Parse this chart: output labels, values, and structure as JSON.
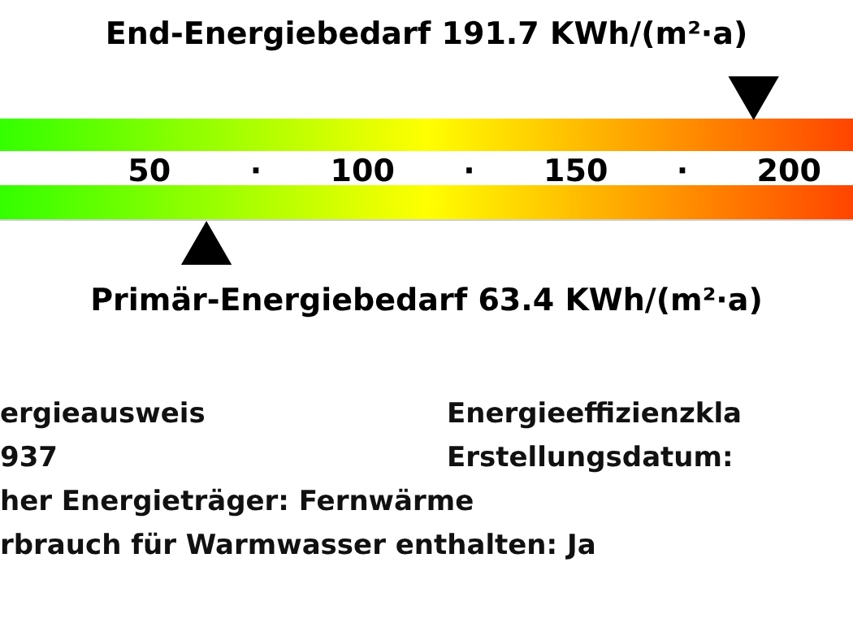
{
  "chart_data": {
    "type": "scatter",
    "orientation": "horizontal",
    "marker": "triangle",
    "xlim": [
      15,
      215
    ],
    "xticks": [
      50,
      {
        "value": 75,
        "label": "·"
      },
      100,
      {
        "value": 125,
        "label": "·"
      },
      150,
      {
        "value": 175,
        "label": "·"
      },
      200
    ],
    "categories": [
      "End-Energiebedarf 191.7 KWh/(m²·a)",
      "Primär-Energiebedarf 63.4 KWh/(m²·a)"
    ],
    "values": [
      191.7,
      63.4
    ],
    "color": "#000000",
    "bands": [
      {
        "axis": "x",
        "from": 15,
        "to": 215
      },
      {
        "axis": "x",
        "from": 15,
        "to": 215
      }
    ],
    "annotations": [
      "ergieausweis",
      "Energieeffizienzkla",
      "937",
      "Erstellungsdatum:",
      "her Energieträger: Fernwärme",
      "rbrauch für Warmwasser enthalten: Ja"
    ]
  }
}
